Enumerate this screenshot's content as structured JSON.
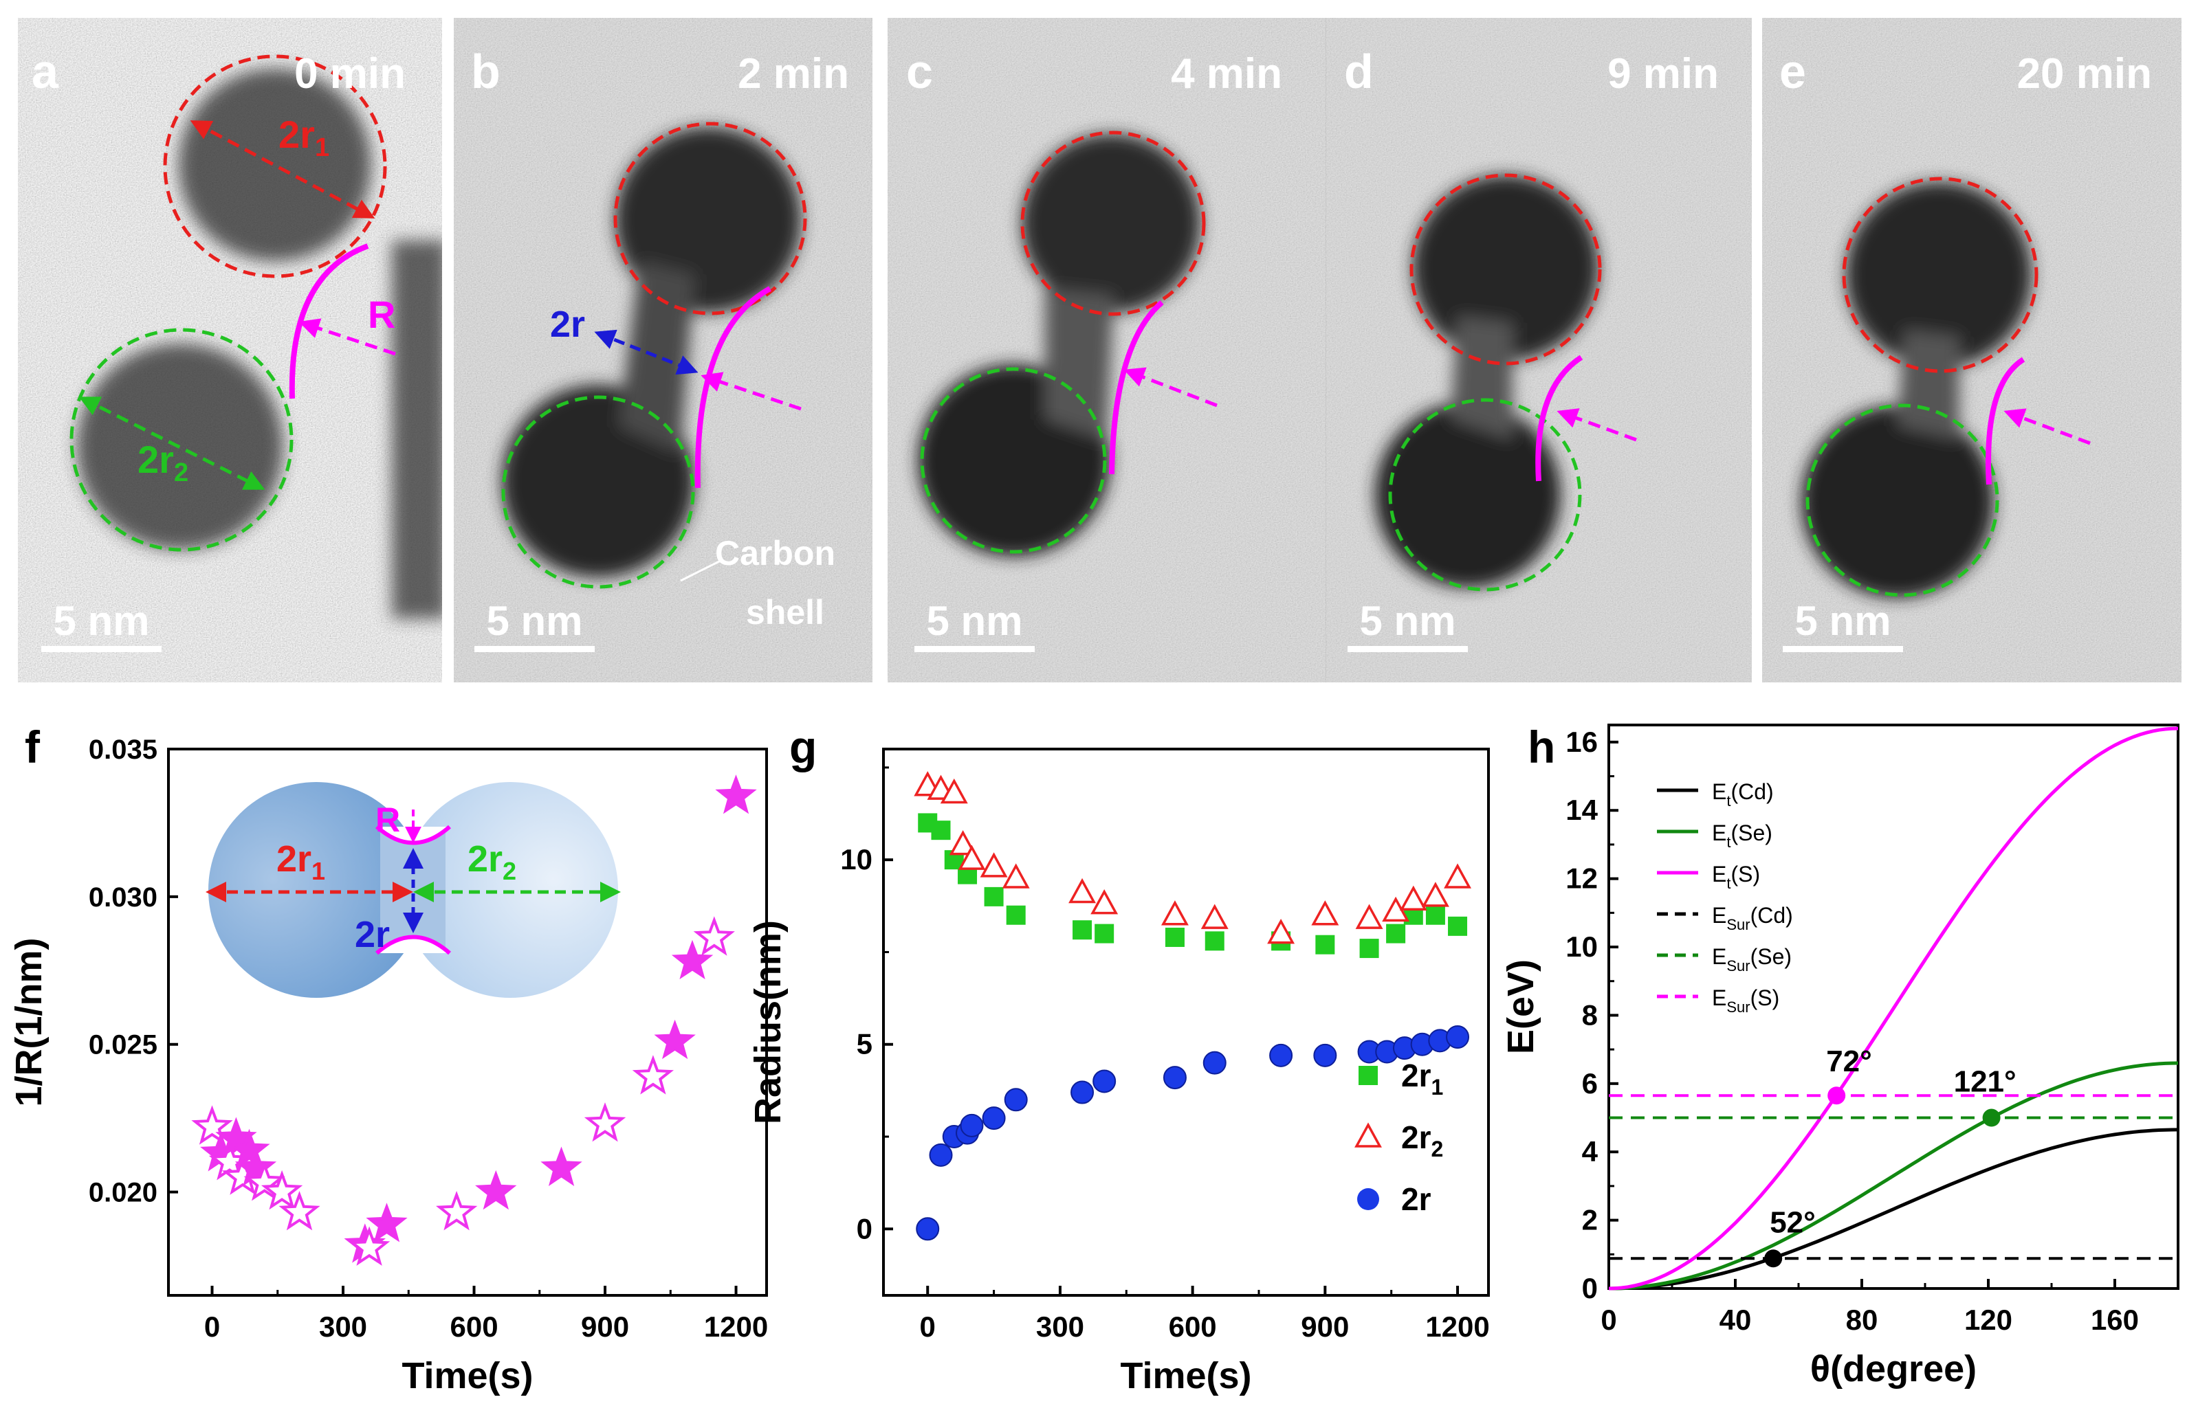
{
  "panels": [
    {
      "letter": "a",
      "time": "0 min",
      "scale_bar": "5 nm"
    },
    {
      "letter": "b",
      "time": "2 min",
      "scale_bar": "5 nm",
      "annotation": "Carbon shell",
      "annotation_line1": "Carbon",
      "annotation_line2": "shell"
    },
    {
      "letter": "c",
      "time": "4 min",
      "scale_bar": "5 nm"
    },
    {
      "letter": "d",
      "time": "9 min",
      "scale_bar": "5 nm"
    },
    {
      "letter": "e",
      "time": "20 min",
      "scale_bar": "5 nm"
    }
  ],
  "tem_labels": {
    "r1": "2r",
    "r1_sub": "1",
    "r2": "2r",
    "r2_sub": "2",
    "R": "R",
    "neck": "2r"
  },
  "colors": {
    "red": "#e8201e",
    "green": "#22c322",
    "blue": "#1b1bd6",
    "magenta": "#ff00ff",
    "darkgreen": "#118811",
    "black": "#000000",
    "pink": "#ee33ee"
  },
  "chart_data": [
    {
      "panel": "f",
      "type": "scatter",
      "xlabel": "Time(s)",
      "ylabel": "1/R(1/nm)",
      "xlim": [
        -100,
        1270
      ],
      "ylim": [
        0.0165,
        0.035
      ],
      "xticks": [
        0,
        300,
        600,
        900,
        1200
      ],
      "yticks": [
        0.02,
        0.025,
        0.03,
        0.035
      ],
      "ytick_labels": [
        "0.020",
        "0.025",
        "0.030",
        "0.035"
      ],
      "marker": "star",
      "series": [
        {
          "name": "1/R",
          "points": [
            [
              0,
              0.0222
            ],
            [
              20,
              0.0213
            ],
            [
              40,
              0.021
            ],
            [
              55,
              0.0218
            ],
            [
              70,
              0.0205
            ],
            [
              85,
              0.0214
            ],
            [
              100,
              0.0208
            ],
            [
              120,
              0.0203
            ],
            [
              160,
              0.02
            ],
            [
              200,
              0.0193
            ],
            [
              350,
              0.0182
            ],
            [
              360,
              0.0181
            ],
            [
              400,
              0.0189
            ],
            [
              560,
              0.0193
            ],
            [
              650,
              0.02
            ],
            [
              800,
              0.0208
            ],
            [
              900,
              0.0223
            ],
            [
              1010,
              0.0239
            ],
            [
              1060,
              0.0251
            ],
            [
              1100,
              0.0278
            ],
            [
              1150,
              0.0286
            ],
            [
              1200,
              0.0334
            ]
          ]
        }
      ],
      "inset": {
        "label_r1": "2r",
        "r1_sub": "1",
        "label_r2": "2r",
        "r2_sub": "2",
        "label_neck": "2r",
        "label_R": "R"
      }
    },
    {
      "panel": "g",
      "type": "scatter",
      "xlabel": "Time(s)",
      "ylabel": "Radius(nm)",
      "xlim": [
        -100,
        1270
      ],
      "ylim": [
        -1.8,
        13
      ],
      "xticks": [
        0,
        300,
        600,
        900,
        1200
      ],
      "yticks": [
        0,
        5,
        10
      ],
      "series": [
        {
          "name": "2r",
          "sub": "1",
          "marker": "square",
          "color": "#22cc22",
          "points": [
            [
              0,
              11
            ],
            [
              30,
              10.8
            ],
            [
              60,
              10
            ],
            [
              90,
              9.6
            ],
            [
              150,
              9
            ],
            [
              200,
              8.5
            ],
            [
              350,
              8.1
            ],
            [
              400,
              8
            ],
            [
              560,
              7.9
            ],
            [
              650,
              7.8
            ],
            [
              800,
              7.8
            ],
            [
              900,
              7.7
            ],
            [
              1000,
              7.6
            ],
            [
              1060,
              8
            ],
            [
              1100,
              8.5
            ],
            [
              1150,
              8.5
            ],
            [
              1200,
              8.2
            ]
          ]
        },
        {
          "name": "2r",
          "sub": "2",
          "marker": "triangle-open",
          "color": "#ee2222",
          "points": [
            [
              0,
              12
            ],
            [
              30,
              11.9
            ],
            [
              60,
              11.8
            ],
            [
              80,
              10.4
            ],
            [
              100,
              10
            ],
            [
              150,
              9.8
            ],
            [
              200,
              9.5
            ],
            [
              350,
              9.1
            ],
            [
              400,
              8.8
            ],
            [
              560,
              8.5
            ],
            [
              650,
              8.4
            ],
            [
              800,
              8
            ],
            [
              900,
              8.5
            ],
            [
              1000,
              8.4
            ],
            [
              1060,
              8.6
            ],
            [
              1100,
              8.9
            ],
            [
              1150,
              9
            ],
            [
              1200,
              9.5
            ]
          ]
        },
        {
          "name": "2r",
          "sub": "",
          "marker": "circle",
          "color": "#1a3ae6",
          "points": [
            [
              0,
              0
            ],
            [
              30,
              2
            ],
            [
              60,
              2.5
            ],
            [
              90,
              2.6
            ],
            [
              100,
              2.8
            ],
            [
              150,
              3
            ],
            [
              200,
              3.5
            ],
            [
              350,
              3.7
            ],
            [
              400,
              4
            ],
            [
              560,
              4.1
            ],
            [
              650,
              4.5
            ],
            [
              800,
              4.7
            ],
            [
              900,
              4.7
            ],
            [
              1000,
              4.8
            ],
            [
              1040,
              4.8
            ],
            [
              1080,
              4.9
            ],
            [
              1120,
              5
            ],
            [
              1160,
              5.1
            ],
            [
              1200,
              5.2
            ]
          ]
        }
      ]
    },
    {
      "panel": "h",
      "type": "line",
      "xlabel": "θ(degree)",
      "ylabel": "E(eV)",
      "xlim": [
        0,
        180
      ],
      "ylim": [
        0,
        16.5
      ],
      "xticks": [
        0,
        40,
        80,
        120,
        160
      ],
      "yticks": [
        0,
        2,
        4,
        6,
        8,
        10,
        12,
        14,
        16
      ],
      "series": [
        {
          "name": "E",
          "sub": "t",
          "suffix": "(Cd)",
          "style": "solid",
          "color": "#000000",
          "max": 4.65
        },
        {
          "name": "E",
          "sub": "t",
          "suffix": "(Se)",
          "style": "solid",
          "color": "#118811",
          "max": 6.6
        },
        {
          "name": "E",
          "sub": "t",
          "suffix": "(S)",
          "style": "solid",
          "color": "#ff00ff",
          "max": 16.4
        },
        {
          "name": "E",
          "sub": "Sur",
          "suffix": "(Cd)",
          "style": "dashed",
          "color": "#000000",
          "value": 0.88
        },
        {
          "name": "E",
          "sub": "Sur",
          "suffix": "(Se)",
          "style": "dashed",
          "color": "#118811",
          "value": 5.0
        },
        {
          "name": "E",
          "sub": "Sur",
          "suffix": "(S)",
          "style": "dashed",
          "color": "#ff00ff",
          "value": 5.65
        }
      ],
      "intersections": [
        {
          "label": "52°",
          "x": 52,
          "y": 0.88,
          "color": "#000000"
        },
        {
          "label": "72°",
          "x": 72,
          "y": 5.65,
          "color": "#ff00ff"
        },
        {
          "label": "121°",
          "x": 121,
          "y": 5.0,
          "color": "#118811"
        }
      ]
    }
  ]
}
